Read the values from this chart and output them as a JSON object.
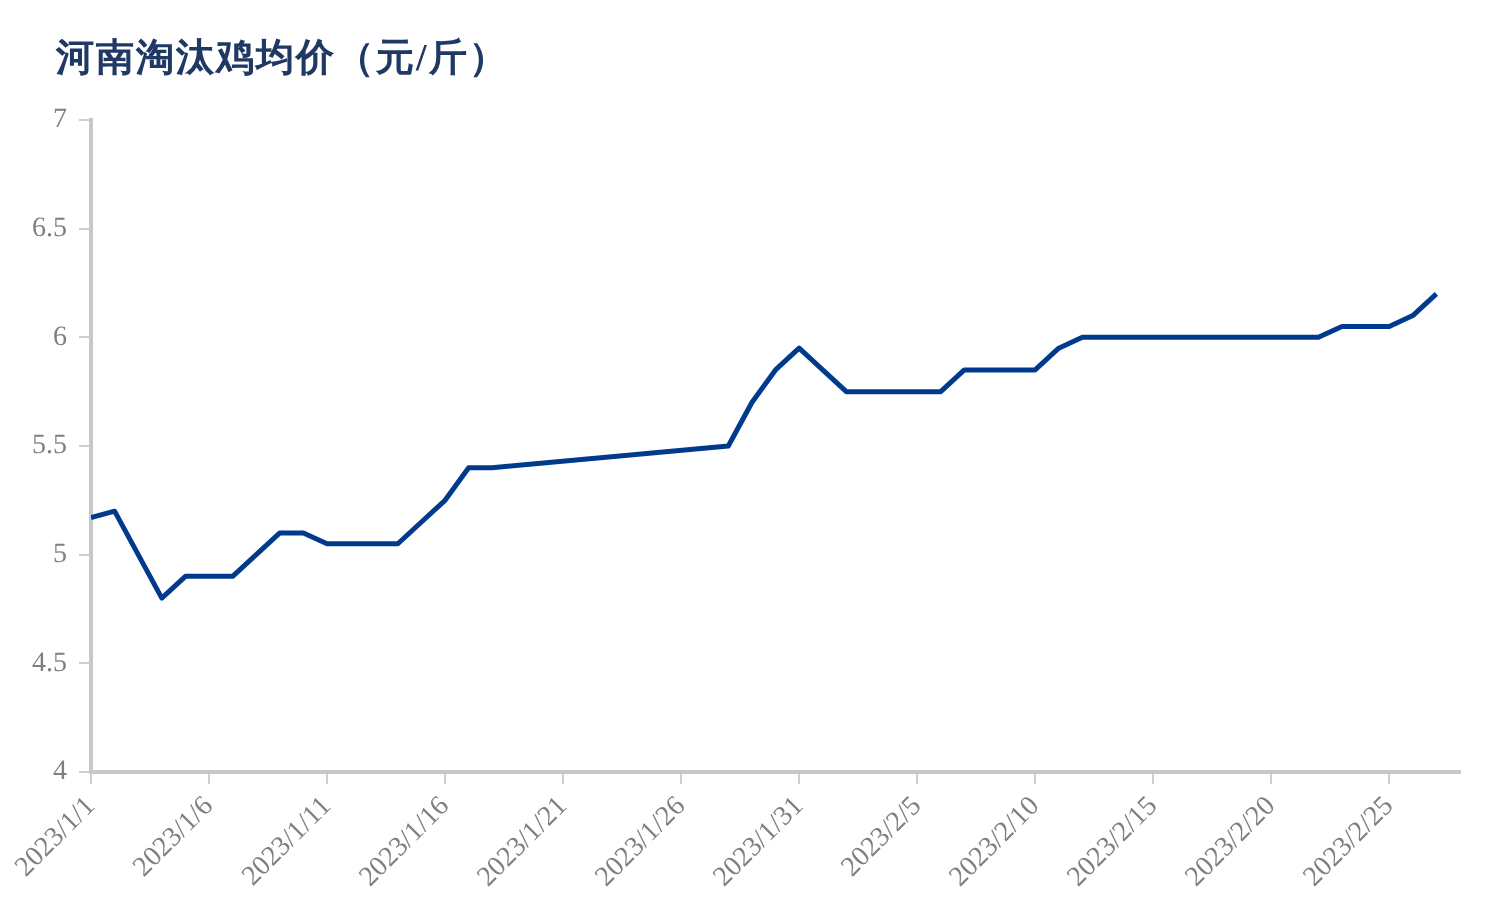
{
  "chart_data": {
    "type": "line",
    "title": "河南淘汰鸡均价（元/斤）",
    "x": [
      "2023-01-01",
      "2023-01-02",
      "2023-01-04",
      "2023-01-05",
      "2023-01-07",
      "2023-01-08",
      "2023-01-09",
      "2023-01-10",
      "2023-01-11",
      "2023-01-14",
      "2023-01-15",
      "2023-01-16",
      "2023-01-17",
      "2023-01-18",
      "2023-01-28",
      "2023-01-29",
      "2023-01-30",
      "2023-01-31",
      "2023-02-02",
      "2023-02-06",
      "2023-02-07",
      "2023-02-10",
      "2023-02-11",
      "2023-02-12",
      "2023-02-22",
      "2023-02-23",
      "2023-02-25",
      "2023-02-26",
      "2023-02-27"
    ],
    "series": [
      {
        "color": "#003a8c",
        "values": [
          5.17,
          5.2,
          4.8,
          4.9,
          4.9,
          5.0,
          5.1,
          5.1,
          5.05,
          5.05,
          5.15,
          5.25,
          5.4,
          5.4,
          5.5,
          5.7,
          5.85,
          5.95,
          5.75,
          5.75,
          5.85,
          5.85,
          5.95,
          6.0,
          6.0,
          6.05,
          6.05,
          6.1,
          6.2
        ]
      }
    ],
    "xlim": [
      "2023-01-01",
      "2023-02-28"
    ],
    "xticks": [
      {
        "value": "2023-01-01",
        "label": "2023/1/1"
      },
      {
        "value": "2023-01-06",
        "label": "2023/1/6"
      },
      {
        "value": "2023-01-11",
        "label": "2023/1/11"
      },
      {
        "value": "2023-01-16",
        "label": "2023/1/16"
      },
      {
        "value": "2023-01-21",
        "label": "2023/1/21"
      },
      {
        "value": "2023-01-26",
        "label": "2023/1/26"
      },
      {
        "value": "2023-01-31",
        "label": "2023/1/31"
      },
      {
        "value": "2023-02-05",
        "label": "2023/2/5"
      },
      {
        "value": "2023-02-10",
        "label": "2023/2/10"
      },
      {
        "value": "2023-02-15",
        "label": "2023/2/15"
      },
      {
        "value": "2023-02-20",
        "label": "2023/2/20"
      },
      {
        "value": "2023-02-25",
        "label": "2023/2/25"
      }
    ],
    "ylim": [
      4,
      7
    ],
    "yticks": [
      4,
      4.5,
      5,
      5.5,
      6,
      6.5,
      7
    ],
    "grid": false,
    "legend": false,
    "marker": "none",
    "line_style": "solid"
  }
}
